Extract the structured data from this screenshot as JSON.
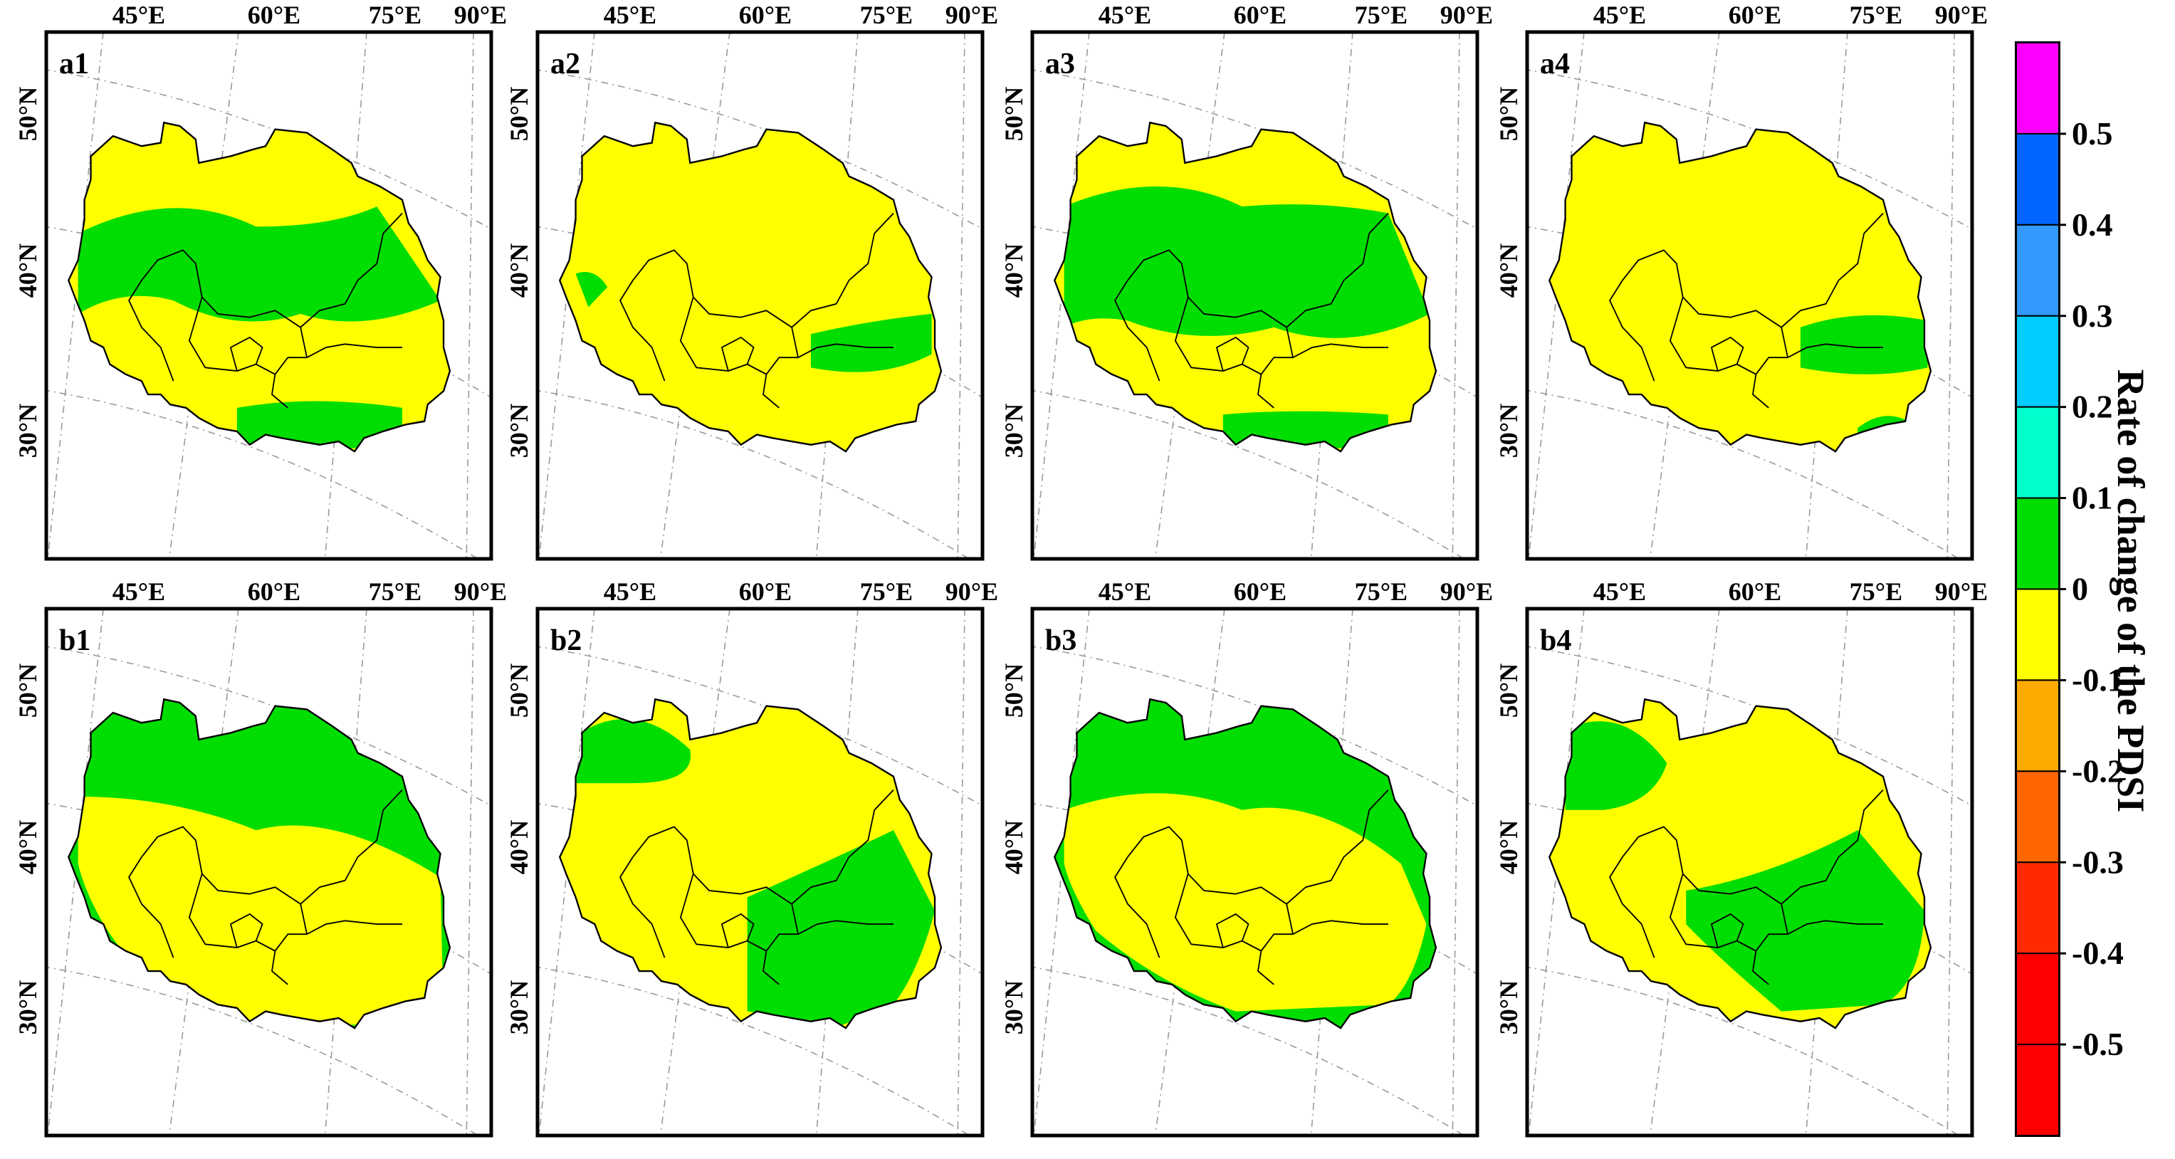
{
  "figure": {
    "lon_labels": [
      "45°E",
      "60°E",
      "75°E",
      "90°E"
    ],
    "lat_labels": [
      "50°N",
      "40°N",
      "30°N"
    ],
    "panels": [
      {
        "label": "a1",
        "dominant_class": "0",
        "secondary_class": "0.1"
      },
      {
        "label": "a2",
        "dominant_class": "0",
        "secondary_class": "0.1"
      },
      {
        "label": "a3",
        "dominant_class": "0",
        "secondary_class": "0.1"
      },
      {
        "label": "a4",
        "dominant_class": "0",
        "secondary_class": "0.1"
      },
      {
        "label": "b1",
        "dominant_class": "0.1",
        "secondary_class": "0"
      },
      {
        "label": "b2",
        "dominant_class": "0",
        "secondary_class": "0.1"
      },
      {
        "label": "b3",
        "dominant_class": "0.1",
        "secondary_class": "0"
      },
      {
        "label": "b4",
        "dominant_class": "0",
        "secondary_class": "0.1"
      }
    ]
  },
  "colorbar": {
    "title": "Rate of change of the PDSI",
    "tick_labels": [
      "0.5",
      "0.4",
      "0.3",
      "0.2",
      "0.1",
      "0",
      "-0.1",
      "-0.2",
      "-0.3",
      "-0.4",
      "-0.5"
    ],
    "bins": [
      {
        "color": "#ff00ff"
      },
      {
        "color": "#0066ff"
      },
      {
        "color": "#3399ff"
      },
      {
        "color": "#00ccff"
      },
      {
        "color": "#00ffcc"
      },
      {
        "color": "#00dd00"
      },
      {
        "color": "#ffff00"
      },
      {
        "color": "#ffaa00"
      },
      {
        "color": "#ff6600"
      },
      {
        "color": "#ff2a00"
      },
      {
        "color": "#ff0000"
      },
      {
        "color": "#ff0000"
      }
    ]
  },
  "colors": {
    "zero_class": "#ffff00",
    "positive_class": "#00dd00",
    "negative_spots": "#ff2a00",
    "positive_spots": "#3399ff"
  }
}
